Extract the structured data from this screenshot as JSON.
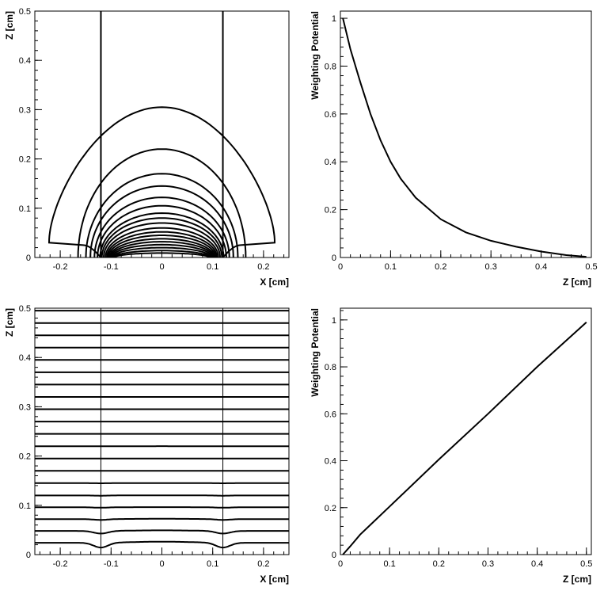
{
  "chart_data": [
    {
      "panel": "top-left",
      "type": "contour",
      "xlabel": "X [cm]",
      "ylabel": "Z [cm]",
      "xlim": [
        -0.25,
        0.25
      ],
      "ylim": [
        0,
        0.5
      ],
      "xticks": [
        -0.2,
        -0.1,
        0,
        0.1,
        0.2
      ],
      "xtick_labels": [
        "-0.2",
        "-0.1",
        "0",
        "0.1",
        "0.2"
      ],
      "yticks": [
        0,
        0.1,
        0.2,
        0.3,
        0.4,
        0.5
      ],
      "ytick_labels": [
        "0",
        "0.1",
        "0.2",
        "0.3",
        "0.4",
        "0.5"
      ],
      "vertical_lines_x": [
        -0.12,
        0.12
      ],
      "contour_tops": [
        0.305,
        0.22,
        0.17,
        0.145,
        0.122,
        0.105,
        0.09,
        0.08,
        0.07,
        0.06,
        0.052,
        0.045,
        0.038,
        0.032,
        0.026,
        0.02,
        0.014,
        0.009
      ],
      "outer_contour": {
        "top": 0.305,
        "half_width": 0.222,
        "foot_inner_x": 0.12,
        "foot_outer_x": 0.155
      },
      "grid": false
    },
    {
      "panel": "top-right",
      "type": "line",
      "xlabel": "Z [cm]",
      "ylabel": "Weighting Potential",
      "xlim": [
        0,
        0.5
      ],
      "ylim": [
        0,
        1.03
      ],
      "xticks": [
        0,
        0.1,
        0.2,
        0.3,
        0.4,
        0.5
      ],
      "xtick_labels": [
        "0",
        "0.1",
        "0.2",
        "0.3",
        "0.4",
        "0.5"
      ],
      "yticks": [
        0,
        0.2,
        0.4,
        0.6,
        0.8,
        1
      ],
      "ytick_labels": [
        "0",
        "0.2",
        "0.4",
        "0.6",
        "0.8",
        "1"
      ],
      "x": [
        0.005,
        0.02,
        0.04,
        0.06,
        0.08,
        0.1,
        0.12,
        0.15,
        0.2,
        0.25,
        0.3,
        0.35,
        0.4,
        0.45,
        0.49
      ],
      "y": [
        1.0,
        0.87,
        0.73,
        0.6,
        0.49,
        0.4,
        0.33,
        0.25,
        0.16,
        0.105,
        0.07,
        0.045,
        0.025,
        0.01,
        0.003
      ],
      "grid": false
    },
    {
      "panel": "bottom-left",
      "type": "contour",
      "xlabel": "X [cm]",
      "ylabel": "Z [cm]",
      "xlim": [
        -0.25,
        0.25
      ],
      "ylim": [
        0,
        0.5
      ],
      "xticks": [
        -0.2,
        -0.1,
        0,
        0.1,
        0.2
      ],
      "xtick_labels": [
        "-0.2",
        "-0.1",
        "0",
        "0.1",
        "0.2"
      ],
      "yticks": [
        0,
        0.1,
        0.2,
        0.3,
        0.4,
        0.5
      ],
      "ytick_labels": [
        "0",
        "0.1",
        "0.2",
        "0.3",
        "0.4",
        "0.5"
      ],
      "vertical_lines_x": [
        -0.12,
        0.12
      ],
      "contour_levels": [
        0.024,
        0.048,
        0.072,
        0.096,
        0.12,
        0.145,
        0.17,
        0.195,
        0.22,
        0.245,
        0.27,
        0.295,
        0.32,
        0.345,
        0.37,
        0.395,
        0.42,
        0.445,
        0.47,
        0.495
      ],
      "grid": false
    },
    {
      "panel": "bottom-right",
      "type": "line",
      "xlabel": "Z [cm]",
      "ylabel": "Weighting Potential",
      "xlim": [
        0,
        0.51
      ],
      "ylim": [
        0,
        1.05
      ],
      "xticks": [
        0,
        0.1,
        0.2,
        0.3,
        0.4,
        0.5
      ],
      "xtick_labels": [
        "0",
        "0.1",
        "0.2",
        "0.3",
        "0.4",
        "0.5"
      ],
      "yticks": [
        0,
        0.2,
        0.4,
        0.6,
        0.8,
        1
      ],
      "ytick_labels": [
        "0",
        "0.2",
        "0.4",
        "0.6",
        "0.8",
        "1"
      ],
      "x": [
        0.005,
        0.02,
        0.04,
        0.06,
        0.1,
        0.2,
        0.3,
        0.4,
        0.5
      ],
      "y": [
        0.0,
        0.035,
        0.085,
        0.125,
        0.205,
        0.405,
        0.6,
        0.8,
        0.99
      ],
      "grid": false
    }
  ]
}
